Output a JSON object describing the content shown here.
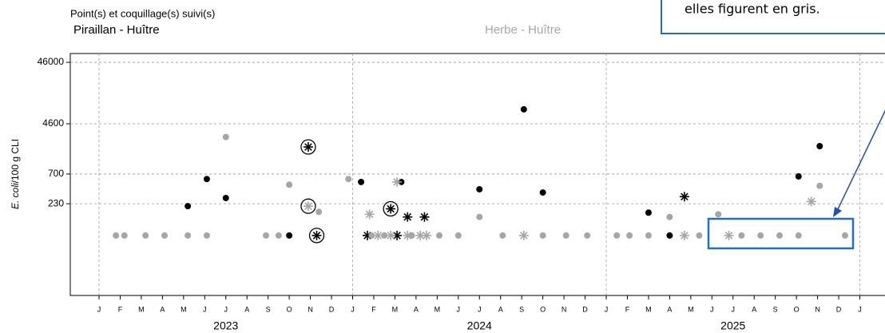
{
  "chart_data": {
    "type": "scatter",
    "subtitle": "Point(s) et coquillage(s) suivi(s)",
    "ylabel": {
      "italic": "E. coli",
      "rest": "/100 g CLI"
    },
    "annotation": "elles figurent en gris.",
    "log_y": true,
    "ylim": [
      7.4,
      64000
    ],
    "yticks": [
      230,
      700,
      4600,
      46000
    ],
    "xlim": [
      -1.36,
      37.19
    ],
    "xticks": [
      {
        "value": 0,
        "label": "J"
      },
      {
        "value": 1,
        "label": "F"
      },
      {
        "value": 2,
        "label": "M"
      },
      {
        "value": 3,
        "label": "A"
      },
      {
        "value": 4,
        "label": "M"
      },
      {
        "value": 5,
        "label": "J"
      },
      {
        "value": 6,
        "label": "J"
      },
      {
        "value": 7,
        "label": "A"
      },
      {
        "value": 8,
        "label": "S"
      },
      {
        "value": 9,
        "label": "O"
      },
      {
        "value": 10,
        "label": "N"
      },
      {
        "value": 11,
        "label": "D"
      },
      {
        "value": 12,
        "label": "J"
      },
      {
        "value": 13,
        "label": "F"
      },
      {
        "value": 14,
        "label": "M"
      },
      {
        "value": 15,
        "label": "A"
      },
      {
        "value": 16,
        "label": "M"
      },
      {
        "value": 17,
        "label": "J"
      },
      {
        "value": 18,
        "label": "J"
      },
      {
        "value": 19,
        "label": "A"
      },
      {
        "value": 20,
        "label": "S"
      },
      {
        "value": 21,
        "label": "O"
      },
      {
        "value": 22,
        "label": "N"
      },
      {
        "value": 23,
        "label": "D"
      },
      {
        "value": 24,
        "label": "J"
      },
      {
        "value": 25,
        "label": "F"
      },
      {
        "value": 26,
        "label": "M"
      },
      {
        "value": 27,
        "label": "A"
      },
      {
        "value": 28,
        "label": "M"
      },
      {
        "value": 29,
        "label": "J"
      },
      {
        "value": 30,
        "label": "J"
      },
      {
        "value": 31,
        "label": "A"
      },
      {
        "value": 32,
        "label": "S"
      },
      {
        "value": 33,
        "label": "O"
      },
      {
        "value": 34,
        "label": "N"
      },
      {
        "value": 35,
        "label": "D"
      },
      {
        "value": 36,
        "label": "J"
      }
    ],
    "year_labels": [
      {
        "value": 6,
        "label": "2023"
      },
      {
        "value": 18,
        "label": "2024"
      },
      {
        "value": 30,
        "label": "2025"
      }
    ],
    "xgrid": [
      0,
      12,
      24,
      36
    ],
    "grid": true,
    "series": [
      {
        "name": "Piraillan - Huître",
        "color": "#000000",
        "x": [
          4.2,
          5.1,
          6.0,
          9.0,
          12.4,
          14.3,
          18.0,
          20.1,
          21.0,
          26.0,
          27.0,
          33.1,
          34.1,
          12.7,
          14.1,
          14.6,
          15.4,
          27.7,
          9.9,
          13.8,
          10.3
        ],
        "values": [
          210,
          580,
          285,
          70,
          520,
          520,
          395,
          7900,
          350,
          165,
          70,
          640,
          1990,
          70,
          70,
          140,
          140,
          300,
          1930,
          190,
          70
        ],
        "markers": [
          "dot",
          "dot",
          "dot",
          "dot",
          "dot",
          "dot",
          "dot",
          "dot",
          "dot",
          "dot",
          "dot",
          "dot",
          "dot",
          "star",
          "star",
          "star",
          "star",
          "star",
          "circled-star",
          "circled-star",
          "circled-star"
        ]
      },
      {
        "name": "Herbe - Huître",
        "color": "#a6a6a6",
        "x": [
          0.8,
          1.2,
          2.2,
          3.1,
          4.2,
          5.1,
          7.9,
          8.5,
          16.1,
          17.0,
          19.1,
          21.0,
          22.1,
          23.1,
          24.5,
          25.1,
          26.0,
          28.4,
          30.4,
          31.3,
          32.2,
          33.1,
          35.3,
          12.9,
          13.5,
          14.8,
          6.0,
          9.0,
          10.4,
          11.8,
          18.0,
          27.0,
          29.3,
          34.1,
          13.2,
          13.8,
          14.6,
          15.2,
          15.5,
          20.1,
          27.7,
          29.8,
          12.8,
          14.1,
          33.7,
          9.9
        ],
        "values": [
          70,
          70,
          70,
          70,
          70,
          70,
          70,
          70,
          70,
          70,
          70,
          70,
          70,
          70,
          70,
          70,
          70,
          70,
          70,
          70,
          70,
          70,
          70,
          70,
          70,
          70,
          2800,
          470,
          170,
          580,
          140,
          140,
          155,
          450,
          70,
          70,
          70,
          70,
          70,
          70,
          70,
          70,
          155,
          520,
          250,
          210
        ],
        "markers": [
          "dot",
          "dot",
          "dot",
          "dot",
          "dot",
          "dot",
          "dot",
          "dot",
          "dot",
          "dot",
          "dot",
          "dot",
          "dot",
          "dot",
          "dot",
          "dot",
          "dot",
          "dot",
          "dot",
          "dot",
          "dot",
          "dot",
          "dot",
          "dot",
          "dot",
          "dot",
          "dot",
          "dot",
          "dot",
          "dot",
          "dot",
          "dot",
          "dot",
          "dot",
          "star",
          "star",
          "star",
          "star",
          "star",
          "star",
          "star",
          "star",
          "star",
          "star",
          "star",
          "circled-star"
        ]
      }
    ]
  }
}
